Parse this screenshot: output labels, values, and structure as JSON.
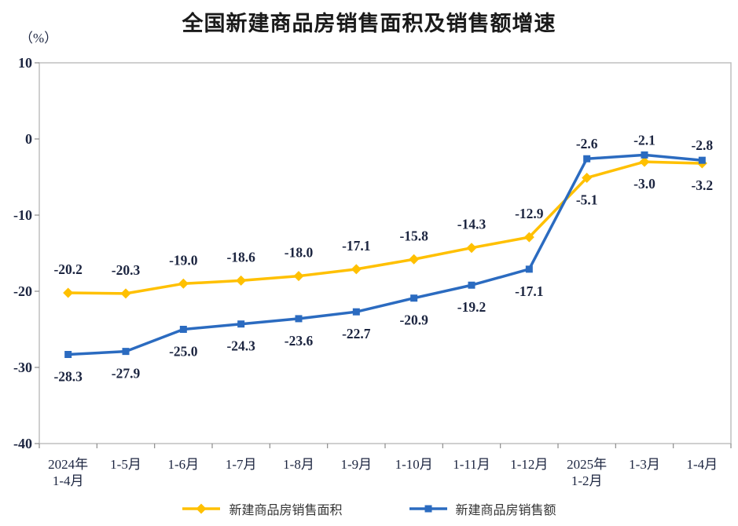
{
  "chart_data": {
    "type": "line",
    "title": "全国新建商品房销售面积及销售额增速",
    "ylabel": "（%）",
    "xlabel": "",
    "ylim": [
      -40,
      10
    ],
    "yticks": [
      10,
      0,
      -10,
      -20,
      -30,
      -40
    ],
    "grid": false,
    "legend_position": "bottom",
    "text_color": "#1C2540",
    "frame_color": "#BFBFBF",
    "tick_color": "#8C8C8C",
    "categories": [
      "2024年\n1-4月",
      "1-5月",
      "1-6月",
      "1-7月",
      "1-8月",
      "1-9月",
      "1-10月",
      "1-11月",
      "1-12月",
      "2025年\n1-2月",
      "1-3月",
      "1-4月"
    ],
    "series": [
      {
        "name": "新建商品房销售面积",
        "color": "#FFC000",
        "marker": "diamond",
        "values": [
          -20.2,
          -20.3,
          -19.0,
          -18.6,
          -18.0,
          -17.1,
          -15.8,
          -14.3,
          -12.9,
          -5.1,
          -3.0,
          -3.2
        ],
        "label_positions": [
          "above",
          "above",
          "above",
          "above",
          "above",
          "above",
          "above",
          "above",
          "above",
          "below",
          "below",
          "below"
        ]
      },
      {
        "name": "新建商品房销售额",
        "color": "#2B6BC0",
        "marker": "square",
        "values": [
          -28.3,
          -27.9,
          -25.0,
          -24.3,
          -23.6,
          -22.7,
          -20.9,
          -19.2,
          -17.1,
          -2.6,
          -2.1,
          -2.8
        ],
        "label_positions": [
          "below",
          "below",
          "below",
          "below",
          "below",
          "below",
          "below",
          "below",
          "below",
          "above",
          "above",
          "above"
        ]
      }
    ]
  }
}
